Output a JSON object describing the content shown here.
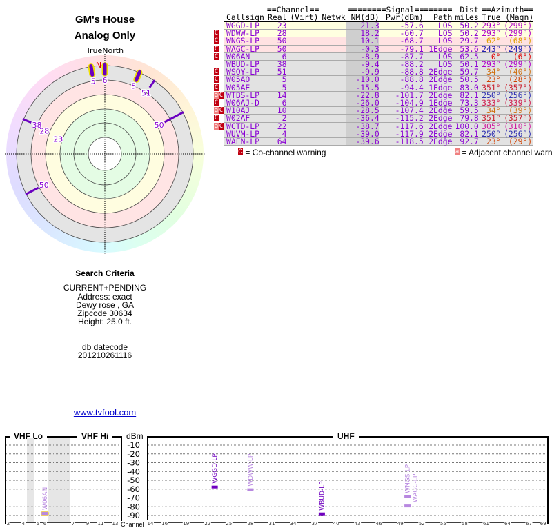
{
  "header": {
    "title": "GM's House",
    "subtitle": "Analog Only"
  },
  "polar": {
    "north_label": "TrueNorth",
    "n_marker": "N",
    "markers": [
      {
        "azimuth": 351,
        "channel": "5",
        "nm": -15.5,
        "highlight": true
      },
      {
        "azimuth": 0,
        "channel": "6",
        "nm": -8.9,
        "highlight": true
      },
      {
        "azimuth": 23,
        "channel": "5",
        "nm": -10.0,
        "highlight": true
      },
      {
        "azimuth": 34,
        "channel": "51",
        "nm": -9.9,
        "highlight": false
      },
      {
        "azimuth": 62,
        "channel": "50",
        "nm": 10.1,
        "highlight": false
      },
      {
        "azimuth": 243,
        "channel": "50",
        "nm": -0.3,
        "highlight": false
      },
      {
        "azimuth": 293,
        "channel": "38",
        "nm": -9.4,
        "highlight": false
      },
      {
        "azimuth": 293,
        "channel": "28",
        "nm": 18.2,
        "highlight": false
      },
      {
        "azimuth": 293,
        "channel": "23",
        "nm": 21.3,
        "highlight": false
      }
    ]
  },
  "search": {
    "heading": "Search Criteria",
    "lines": [
      "CURRENT+PENDING",
      "Address: exact",
      "Dewy rose , GA",
      "Zipcode 30634",
      "Height: 25.0 ft."
    ],
    "db_label": "db datecode",
    "db_value": "201210261116",
    "link": "www.tvfool.com"
  },
  "table": {
    "group_headers": {
      "channel": "==Channel==",
      "signal": "========Signal========",
      "dist": "Dist",
      "azimuth": "==Azimuth=="
    },
    "headers": [
      "Callsign",
      "Real",
      "(Virt)",
      "Netwk",
      "NM(dB)",
      "Pwr(dBm)",
      "Path",
      "miles",
      "True",
      "(Magn)"
    ],
    "rows": [
      {
        "callsign": "WGGD-LP",
        "real": "23",
        "virt": "",
        "netwk": "",
        "nm": "21.3",
        "pwr": "-57.6",
        "path": "LOS",
        "dist": "50.2",
        "true": "293°",
        "magn": "(299°)",
        "bg": "y",
        "co": false,
        "adj": false,
        "az_color": "#b000c8"
      },
      {
        "callsign": "WDWW-LP",
        "real": "28",
        "virt": "",
        "netwk": "",
        "nm": "18.2",
        "pwr": "-60.7",
        "path": "LOS",
        "dist": "50.2",
        "true": "293°",
        "magn": "(299°)",
        "bg": "y",
        "co": true,
        "adj": false,
        "az_color": "#b000c8"
      },
      {
        "callsign": "WNGS-LP",
        "real": "50",
        "virt": "",
        "netwk": "",
        "nm": "10.1",
        "pwr": "-68.7",
        "path": "LOS",
        "dist": "29.7",
        "true": "62°",
        "magn": "(68°)",
        "bg": "p",
        "co": true,
        "adj": false,
        "az_color": "#e0a000"
      },
      {
        "callsign": "WAGC-LP",
        "real": "50",
        "virt": "",
        "netwk": "",
        "nm": "-0.3",
        "pwr": "-79.1",
        "path": "1Edge",
        "dist": "53.6",
        "true": "243°",
        "magn": "(249°)",
        "bg": "p",
        "co": true,
        "adj": false,
        "az_color": "#2020b0"
      },
      {
        "callsign": "W06AN",
        "real": "6",
        "virt": "",
        "netwk": "",
        "nm": "-8.9",
        "pwr": "-87.7",
        "path": "LOS",
        "dist": "62.5",
        "true": "0°",
        "magn": "(6°)",
        "bg": "g",
        "co": true,
        "adj": false,
        "az_color": "#e00000"
      },
      {
        "callsign": "WBUD-LP",
        "real": "38",
        "virt": "",
        "netwk": "",
        "nm": "-9.4",
        "pwr": "-88.2",
        "path": "LOS",
        "dist": "50.1",
        "true": "293°",
        "magn": "(299°)",
        "bg": "g",
        "co": false,
        "adj": false,
        "az_color": "#b000c8"
      },
      {
        "callsign": "WSQY-LP",
        "real": "51",
        "virt": "",
        "netwk": "",
        "nm": "-9.9",
        "pwr": "-88.8",
        "path": "2Edge",
        "dist": "59.7",
        "true": "34°",
        "magn": "(40°)",
        "bg": "g",
        "co": true,
        "adj": false,
        "az_color": "#d07010"
      },
      {
        "callsign": "W05AO",
        "real": "5",
        "virt": "",
        "netwk": "",
        "nm": "-10.0",
        "pwr": "-88.8",
        "path": "2Edge",
        "dist": "50.5",
        "true": "23°",
        "magn": "(28°)",
        "bg": "g",
        "co": true,
        "adj": false,
        "az_color": "#d04000"
      },
      {
        "callsign": "W05AE",
        "real": "5",
        "virt": "",
        "netwk": "",
        "nm": "-15.5",
        "pwr": "-94.4",
        "path": "1Edge",
        "dist": "83.0",
        "true": "351°",
        "magn": "(357°)",
        "bg": "g",
        "co": true,
        "adj": false,
        "az_color": "#c82030"
      },
      {
        "callsign": "WTBS-LP",
        "real": "14",
        "virt": "",
        "netwk": "",
        "nm": "-22.8",
        "pwr": "-101.7",
        "path": "2Edge",
        "dist": "82.1",
        "true": "250°",
        "magn": "(256°)",
        "bg": "g",
        "co": true,
        "adj": true,
        "az_color": "#3030b0"
      },
      {
        "callsign": "W06AJ-D",
        "real": "6",
        "virt": "",
        "netwk": "",
        "nm": "-26.0",
        "pwr": "-104.9",
        "path": "1Edge",
        "dist": "73.3",
        "true": "333°",
        "magn": "(339°)",
        "bg": "g",
        "co": true,
        "adj": false,
        "az_color": "#d02050"
      },
      {
        "callsign": "W10AJ",
        "real": "10",
        "virt": "",
        "netwk": "",
        "nm": "-28.5",
        "pwr": "-107.4",
        "path": "2Edge",
        "dist": "59.5",
        "true": "34°",
        "magn": "(39°)",
        "bg": "g",
        "co": true,
        "adj": true,
        "az_color": "#d07010"
      },
      {
        "callsign": "W02AF",
        "real": "2",
        "virt": "",
        "netwk": "",
        "nm": "-36.4",
        "pwr": "-115.2",
        "path": "2Edge",
        "dist": "79.8",
        "true": "351°",
        "magn": "(357°)",
        "bg": "g",
        "co": true,
        "adj": false,
        "az_color": "#c82030"
      },
      {
        "callsign": "WCTD-LP",
        "real": "22",
        "virt": "",
        "netwk": "",
        "nm": "-38.7",
        "pwr": "-117.6",
        "path": "2Edge",
        "dist": "100.0",
        "true": "305°",
        "magn": "(310°)",
        "bg": "g",
        "co": true,
        "adj": true,
        "az_color": "#d020a0"
      },
      {
        "callsign": "WUVM-LP",
        "real": "4",
        "virt": "",
        "netwk": "",
        "nm": "-39.0",
        "pwr": "-117.9",
        "path": "2Edge",
        "dist": "82.1",
        "true": "250°",
        "magn": "(256°)",
        "bg": "g",
        "co": false,
        "adj": false,
        "az_color": "#3030b0"
      },
      {
        "callsign": "WAEN-LP",
        "real": "64",
        "virt": "",
        "netwk": "",
        "nm": "-39.6",
        "pwr": "-118.5",
        "path": "2Edge",
        "dist": "92.7",
        "true": "23°",
        "magn": "(29°)",
        "bg": "g",
        "co": false,
        "adj": false,
        "az_color": "#d04000"
      }
    ],
    "co_icon": "C",
    "adj_icon": "a",
    "legend": {
      "co": "= Co-channel warning",
      "adj": "= Adjacent channel warning"
    }
  },
  "spectrum": {
    "vhf_lo": "VHF Lo",
    "vhf_hi": "VHF Hi",
    "uhf": "UHF",
    "unit": "dBm",
    "channel_label": "Channel",
    "dbm_ticks": [
      "-10",
      "-20",
      "-30",
      "-40",
      "-50",
      "-60",
      "-70",
      "-80",
      "-90"
    ],
    "vhf_channels": [
      "2",
      "4",
      "5",
      "6",
      "7",
      "9",
      "11",
      "13"
    ],
    "uhf_channels": [
      "14",
      "16",
      "19",
      "22",
      "25",
      "28",
      "31",
      "34",
      "37",
      "40",
      "43",
      "46",
      "49",
      "52",
      "55",
      "58",
      "61",
      "64",
      "67",
      "69"
    ],
    "markers": [
      {
        "callsign": "W06AN",
        "channel": 6,
        "pwr": -87.7,
        "strong": false,
        "highlight": true
      },
      {
        "callsign": "WGGD-LP",
        "channel": 23,
        "pwr": -57.6,
        "strong": true,
        "highlight": false
      },
      {
        "callsign": "WDWW-LP",
        "channel": 28,
        "pwr": -60.7,
        "strong": false,
        "highlight": false
      },
      {
        "callsign": "WBUD-LP",
        "channel": 38,
        "pwr": -88.2,
        "strong": true,
        "highlight": false
      },
      {
        "callsign": "WNGS-LP",
        "channel": 50,
        "pwr": -68.7,
        "strong": false,
        "highlight": false
      },
      {
        "callsign": "WAGC-LP",
        "channel": 50,
        "pwr": -79.1,
        "strong": false,
        "highlight": false
      }
    ],
    "colors": {
      "strong": "#7000c0",
      "weak": "#b888e0",
      "highlight": "#f0d060"
    }
  }
}
